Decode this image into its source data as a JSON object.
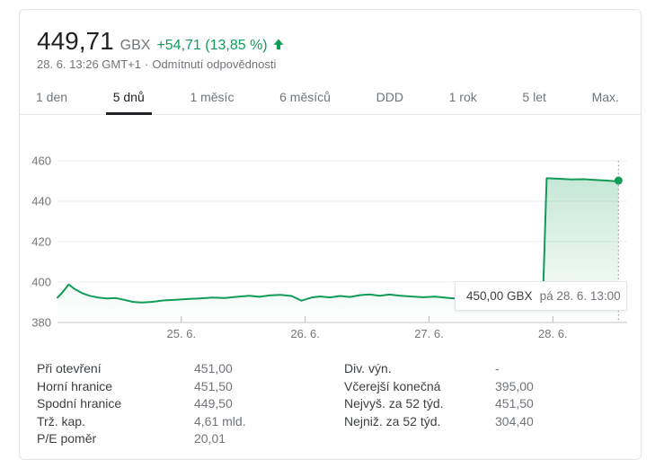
{
  "header": {
    "price": "449,71",
    "currency": "GBX",
    "change": "+54,71 (13,85 %)",
    "arrow_icon": "up-arrow",
    "timestamp": "28. 6. 13:26 GMT+1",
    "separator": "·",
    "disclaimer": "Odmítnutí odpovědnosti"
  },
  "tabs": {
    "items": [
      {
        "label": "1 den",
        "selected": false
      },
      {
        "label": "5 dnů",
        "selected": true
      },
      {
        "label": "1 měsíc",
        "selected": false
      },
      {
        "label": "6 měsíců",
        "selected": false
      },
      {
        "label": "DDD",
        "selected": false
      },
      {
        "label": "1 rok",
        "selected": false
      },
      {
        "label": "5 let",
        "selected": false
      },
      {
        "label": "Max.",
        "selected": false
      }
    ]
  },
  "tooltip": {
    "value": "450,00 GBX",
    "time": "pá 28. 6. 13:00"
  },
  "colors": {
    "positive": "#0f9d58",
    "line": "#129b59",
    "grid": "#ececec",
    "axis": "#c6c6c6",
    "tick": "#b8b8b8",
    "axis_label": "#757575",
    "crosshair": "#9e9e9e",
    "selected_tab": "#202124"
  },
  "chart_data": {
    "type": "line",
    "title": "",
    "unit": "GBX",
    "ylim": [
      380,
      460
    ],
    "yticks": [
      460,
      440,
      420,
      400,
      380
    ],
    "x_range": [
      0,
      4.6
    ],
    "xticks": [
      {
        "pos": 1,
        "label": "25. 6."
      },
      {
        "pos": 2,
        "label": "26. 6."
      },
      {
        "pos": 3,
        "label": "27. 6."
      },
      {
        "pos": 4,
        "label": "28. 6."
      }
    ],
    "grid": true,
    "legend": "none",
    "series": [
      {
        "name": "price",
        "points": [
          [
            0.0,
            392.3
          ],
          [
            0.04,
            394.9
          ],
          [
            0.09,
            398.8
          ],
          [
            0.14,
            396.5
          ],
          [
            0.2,
            394.5
          ],
          [
            0.26,
            393.2
          ],
          [
            0.33,
            392.3
          ],
          [
            0.4,
            391.9
          ],
          [
            0.47,
            392.1
          ],
          [
            0.54,
            391.2
          ],
          [
            0.61,
            390.2
          ],
          [
            0.68,
            389.9
          ],
          [
            0.76,
            390.2
          ],
          [
            0.85,
            390.9
          ],
          [
            0.95,
            391.2
          ],
          [
            1.05,
            391.6
          ],
          [
            1.15,
            391.9
          ],
          [
            1.25,
            392.3
          ],
          [
            1.35,
            392.1
          ],
          [
            1.45,
            392.7
          ],
          [
            1.55,
            393.2
          ],
          [
            1.63,
            392.7
          ],
          [
            1.71,
            393.4
          ],
          [
            1.8,
            393.7
          ],
          [
            1.89,
            393.1
          ],
          [
            1.97,
            390.8
          ],
          [
            2.05,
            392.3
          ],
          [
            2.12,
            392.9
          ],
          [
            2.2,
            392.4
          ],
          [
            2.28,
            393.1
          ],
          [
            2.36,
            392.6
          ],
          [
            2.44,
            393.5
          ],
          [
            2.52,
            393.9
          ],
          [
            2.6,
            393.2
          ],
          [
            2.68,
            393.8
          ],
          [
            2.76,
            393.3
          ],
          [
            2.85,
            392.9
          ],
          [
            2.95,
            392.5
          ],
          [
            3.05,
            392.8
          ],
          [
            3.15,
            392.2
          ],
          [
            3.25,
            391.7
          ],
          [
            3.35,
            392.9
          ],
          [
            3.45,
            393.3
          ],
          [
            3.55,
            393.0
          ],
          [
            3.65,
            393.4
          ],
          [
            3.75,
            393.1
          ],
          [
            3.85,
            393.3
          ],
          [
            3.92,
            393.2
          ],
          [
            3.95,
            451.4
          ],
          [
            4.05,
            451.1
          ],
          [
            4.15,
            450.8
          ],
          [
            4.25,
            450.9
          ],
          [
            4.35,
            450.5
          ],
          [
            4.45,
            450.2
          ],
          [
            4.5,
            449.9
          ],
          [
            4.53,
            450.2
          ]
        ]
      }
    ],
    "last_point": {
      "t": 4.53,
      "value": 450.2
    }
  },
  "stats": {
    "left": [
      {
        "label": "Při otevření",
        "value": "451,00"
      },
      {
        "label": "Horní hranice",
        "value": "451,50"
      },
      {
        "label": "Spodní hranice",
        "value": "449,50"
      },
      {
        "label": "Trž. kap.",
        "value": "4,61 mld."
      },
      {
        "label": "P/E poměr",
        "value": "20,01"
      }
    ],
    "right": [
      {
        "label": "Div. výn.",
        "value": "-"
      },
      {
        "label": "Včerejší konečná",
        "value": "395,00"
      },
      {
        "label": "Nejvyš. za 52 týd.",
        "value": "451,50"
      },
      {
        "label": "Nejniž. za 52 týd.",
        "value": "304,40"
      }
    ]
  }
}
